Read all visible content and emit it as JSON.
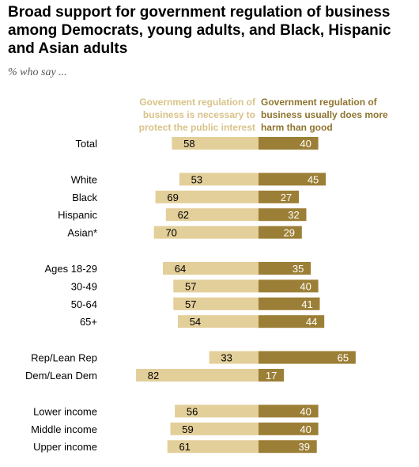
{
  "title": "Broad support for government regulation of business among Democrats, young adults, and Black, Hispanic and Asian adults",
  "subtitle": "% who say ...",
  "legend": {
    "left": "Government regulation of business is necessary to protect the public interest",
    "right": "Government regulation of business usually does more harm than good"
  },
  "colors": {
    "left": "#e3cf9a",
    "right": "#9c7f36",
    "left_text": "#000000",
    "right_text": "#ffffff",
    "legend_left": "#d9c288",
    "legend_right": "#8f742e"
  },
  "chart_data": {
    "type": "bar",
    "orientation": "horizontal diverging",
    "categories": [
      "Total",
      "White",
      "Black",
      "Hispanic",
      "Asian*",
      "Ages 18-29",
      "30-49",
      "50-64",
      "65+",
      "Rep/Lean Rep",
      "Dem/Lean Dem",
      "Lower income",
      "Middle income",
      "Upper income"
    ],
    "groups": [
      [
        0
      ],
      [
        1,
        2,
        3,
        4
      ],
      [
        5,
        6,
        7,
        8
      ],
      [
        9,
        10
      ],
      [
        11,
        12,
        13
      ]
    ],
    "series": [
      {
        "name": "Government regulation of business is necessary to protect the public interest",
        "values": [
          58,
          53,
          69,
          62,
          70,
          64,
          57,
          57,
          54,
          33,
          82,
          56,
          59,
          61
        ]
      },
      {
        "name": "Government regulation of business usually does more harm than good",
        "values": [
          40,
          45,
          27,
          32,
          29,
          35,
          40,
          41,
          44,
          65,
          17,
          40,
          40,
          39
        ]
      }
    ]
  }
}
